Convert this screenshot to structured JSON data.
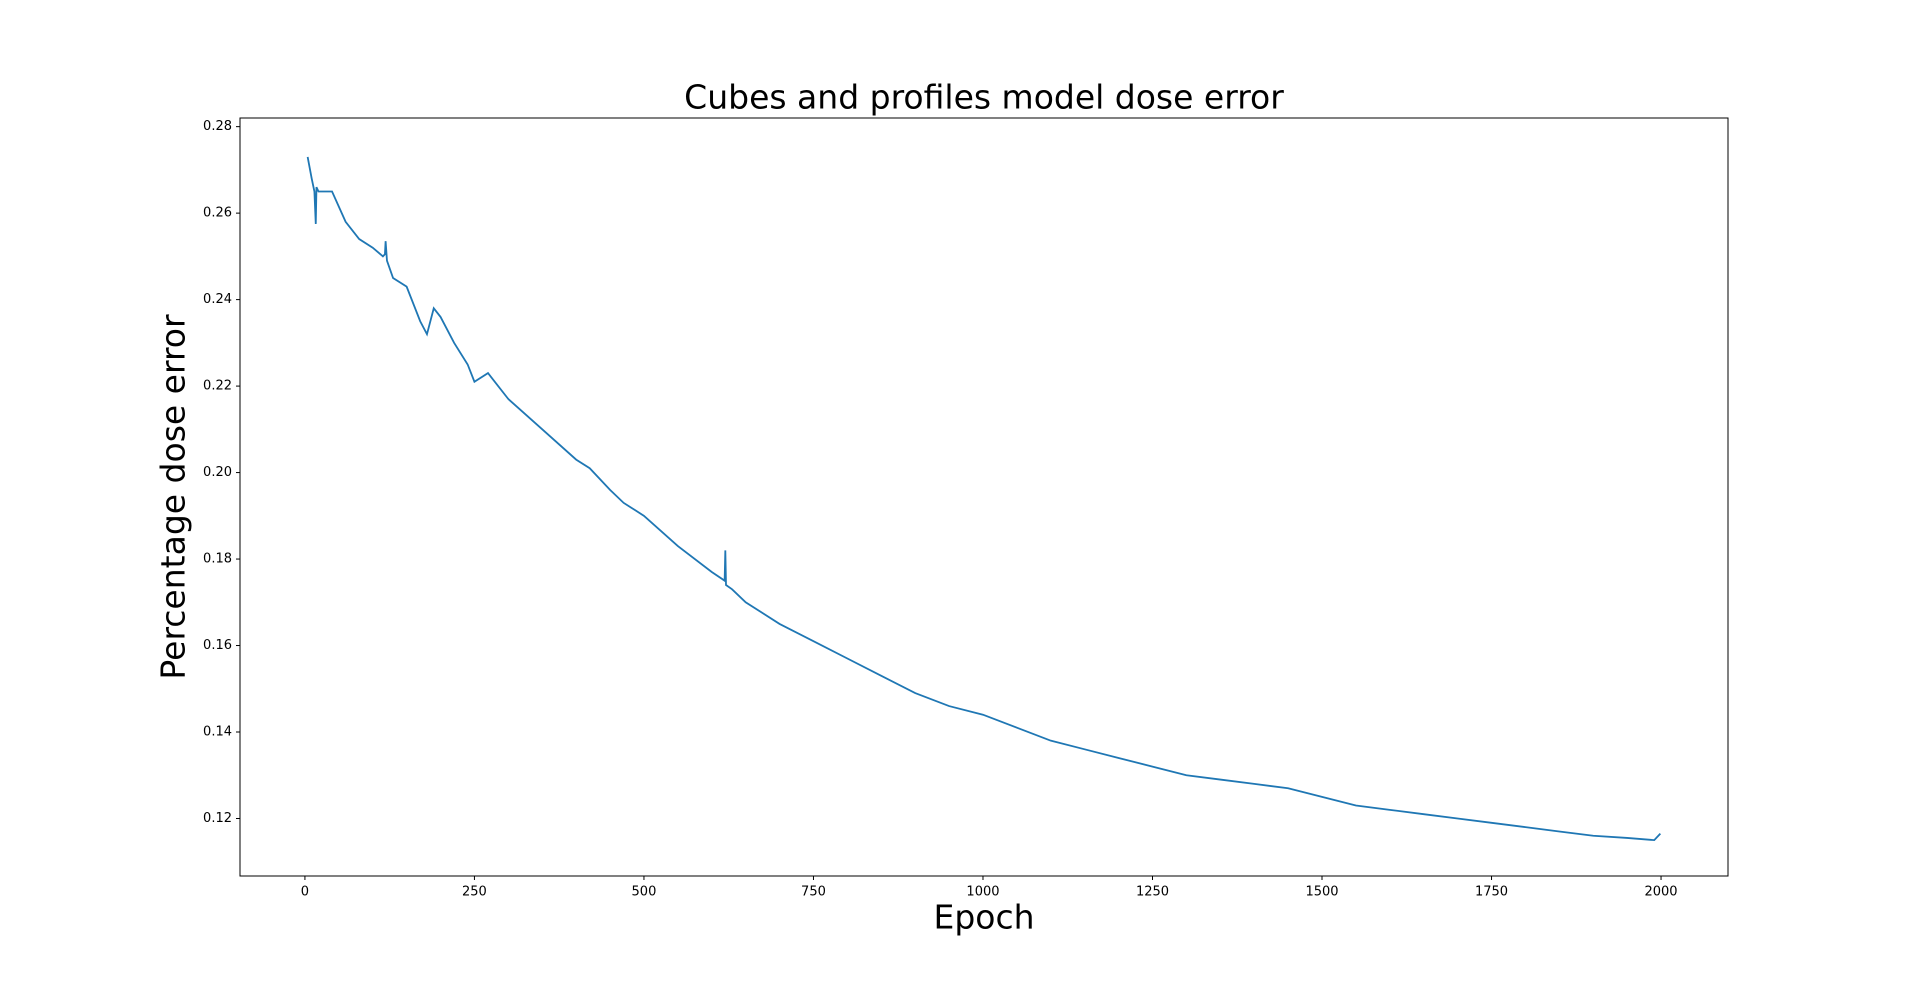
{
  "chart_data": {
    "type": "line",
    "title": "Cubes and profiles model dose error",
    "x_label": "Epoch",
    "y_label": "Percentage dose error",
    "x": [
      4,
      10,
      14,
      16,
      17,
      20,
      40,
      60,
      80,
      100,
      115,
      118,
      119,
      121,
      130,
      150,
      170,
      180,
      190,
      200,
      220,
      240,
      250,
      270,
      300,
      350,
      400,
      420,
      450,
      470,
      500,
      550,
      600,
      619,
      620,
      621,
      630,
      650,
      700,
      750,
      800,
      850,
      900,
      950,
      1000,
      1050,
      1100,
      1150,
      1200,
      1250,
      1300,
      1350,
      1400,
      1450,
      1500,
      1550,
      1600,
      1650,
      1700,
      1750,
      1800,
      1850,
      1900,
      1950,
      1990,
      1999
    ],
    "series": [
      {
        "name": "dose error",
        "color": "#1f77b4",
        "values": [
          0.273,
          0.268,
          0.265,
          0.2575,
          0.266,
          0.265,
          0.265,
          0.258,
          0.254,
          0.252,
          0.25,
          0.2505,
          0.2535,
          0.249,
          0.245,
          0.243,
          0.235,
          0.232,
          0.238,
          0.236,
          0.23,
          0.225,
          0.221,
          0.223,
          0.217,
          0.21,
          0.203,
          0.201,
          0.196,
          0.193,
          0.19,
          0.183,
          0.177,
          0.175,
          0.182,
          0.174,
          0.173,
          0.17,
          0.165,
          0.161,
          0.157,
          0.153,
          0.149,
          0.146,
          0.144,
          0.141,
          0.138,
          0.136,
          0.134,
          0.132,
          0.13,
          0.129,
          0.128,
          0.127,
          0.125,
          0.123,
          0.122,
          0.121,
          0.12,
          0.119,
          0.118,
          0.117,
          0.116,
          0.1155,
          0.115,
          0.1165
        ]
      }
    ],
    "xlim": [
      -95.75,
      2098.75
    ],
    "ylim": [
      0.1067,
      0.282
    ],
    "xticks": [
      0,
      250,
      500,
      750,
      1000,
      1250,
      1500,
      1750,
      2000
    ],
    "yticks": [
      0.12,
      0.14,
      0.16,
      0.18,
      {
        "value": 0.2,
        "label": "0.20"
      },
      0.22,
      0.24,
      0.26,
      0.28
    ]
  }
}
